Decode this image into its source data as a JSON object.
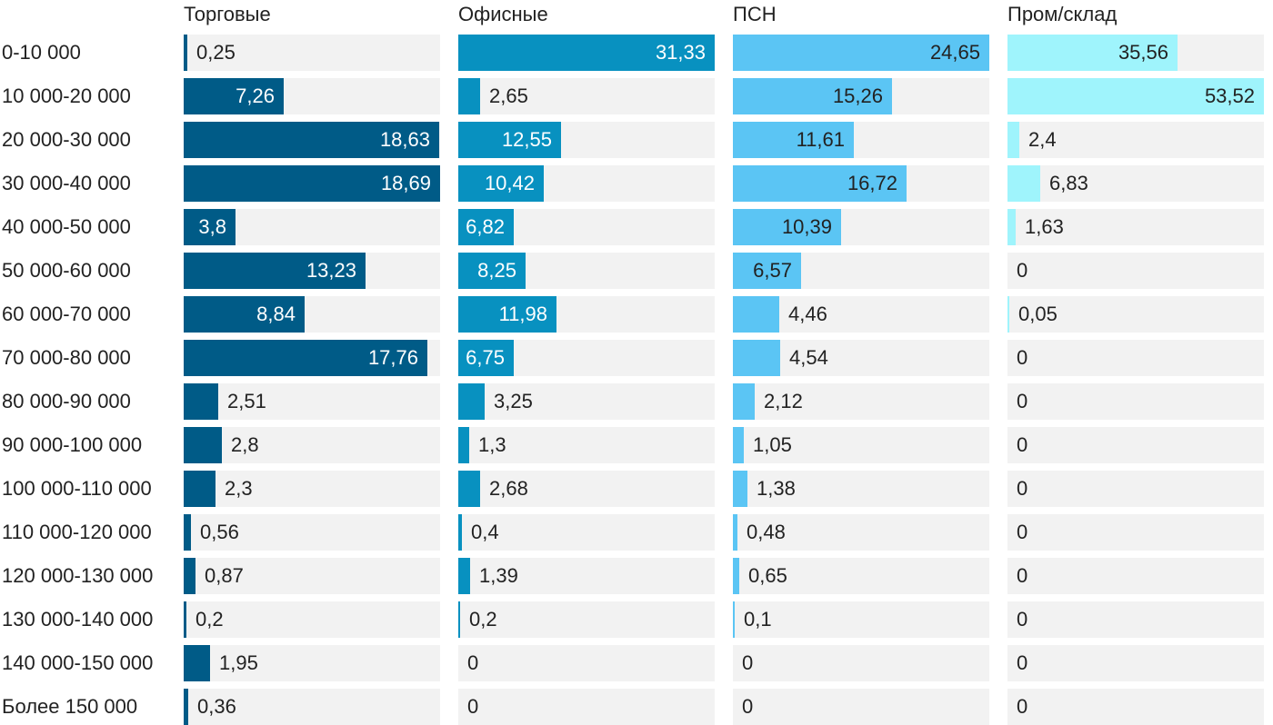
{
  "chart_data": {
    "type": "bar",
    "orientation": "horizontal",
    "layout": "small-multiples",
    "title": "",
    "xlabel": "",
    "ylabel": "",
    "categories": [
      "0-10 000",
      "10 000-20 000",
      "20 000-30 000",
      "30 000-40 000",
      "40 000-50 000",
      "50 000-60 000",
      "60 000-70 000",
      "70 000-80 000",
      "80 000-90 000",
      "90 000-100 000",
      "100 000-110 000",
      "110 000-120 000",
      "120 000-130 000",
      "130 000-140 000",
      "140 000-150 000",
      "Более 150 000"
    ],
    "series": [
      {
        "name": "Торговые",
        "color": "#005b87",
        "text_inside_color": "#ffffff",
        "text_outside_color": "#222222",
        "xlim": [
          0,
          18.69
        ],
        "values": [
          0.25,
          7.26,
          18.63,
          18.69,
          3.8,
          13.23,
          8.84,
          17.76,
          2.51,
          2.8,
          2.3,
          0.56,
          0.87,
          0.2,
          1.95,
          0.36
        ],
        "labels": [
          "0,25",
          "7,26",
          "18,63",
          "18,69",
          "3,8",
          "13,23",
          "8,84",
          "17,76",
          "2,51",
          "2,8",
          "2,3",
          "0,56",
          "0,87",
          "0,2",
          "1,95",
          "0,36"
        ]
      },
      {
        "name": "Офисные",
        "color": "#0891c0",
        "text_inside_color": "#ffffff",
        "text_outside_color": "#222222",
        "xlim": [
          0,
          31.33
        ],
        "values": [
          31.33,
          2.65,
          12.55,
          10.42,
          6.82,
          8.25,
          11.98,
          6.75,
          3.25,
          1.3,
          2.68,
          0.4,
          1.39,
          0.2,
          0,
          0
        ],
        "labels": [
          "31,33",
          "2,65",
          "12,55",
          "10,42",
          "6,82",
          "8,25",
          "11,98",
          "6,75",
          "3,25",
          "1,3",
          "2,68",
          "0,4",
          "1,39",
          "0,2",
          "0",
          "0"
        ]
      },
      {
        "name": "ПСН",
        "color": "#5bc5f4",
        "text_inside_color": "#222222",
        "text_outside_color": "#222222",
        "xlim": [
          0,
          24.65
        ],
        "values": [
          24.65,
          15.26,
          11.61,
          16.72,
          10.39,
          6.57,
          4.46,
          4.54,
          2.12,
          1.05,
          1.38,
          0.48,
          0.65,
          0.1,
          0,
          0
        ],
        "labels": [
          "24,65",
          "15,26",
          "11,61",
          "16,72",
          "10,39",
          "6,57",
          "4,46",
          "4,54",
          "2,12",
          "1,05",
          "1,38",
          "0,48",
          "0,65",
          "0,1",
          "0",
          "0"
        ]
      },
      {
        "name": "Пром/склад",
        "color": "#9ff4fc",
        "text_inside_color": "#222222",
        "text_outside_color": "#222222",
        "xlim": [
          0,
          53.52
        ],
        "values": [
          35.56,
          53.52,
          2.4,
          6.83,
          1.63,
          0,
          0.05,
          0,
          0,
          0,
          0,
          0,
          0,
          0,
          0,
          0
        ],
        "labels": [
          "35,56",
          "53,52",
          "2,4",
          "6,83",
          "1,63",
          "0",
          "0,05",
          "0",
          "0",
          "0",
          "0",
          "0",
          "0",
          "0",
          "0",
          "0"
        ]
      }
    ],
    "grid": false,
    "legend": "none"
  }
}
